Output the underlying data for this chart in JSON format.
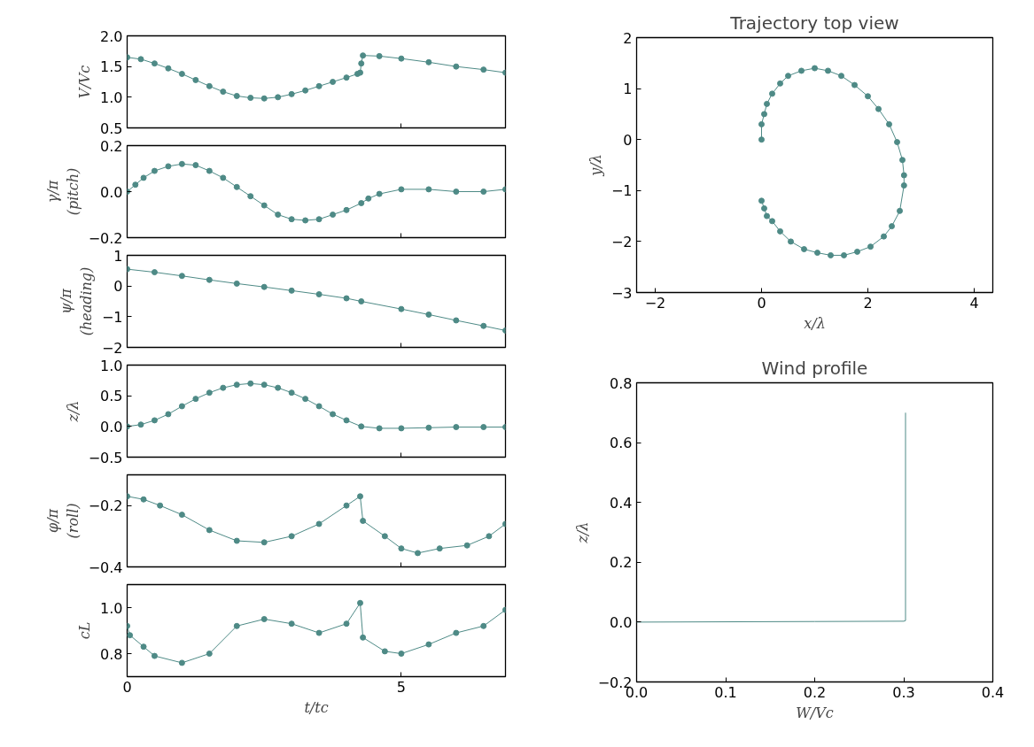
{
  "chart_data": [
    {
      "type": "line",
      "ylabel": "V/Vc",
      "marker": "circle",
      "tick_labels": "y",
      "xlim": [
        0,
        6.9
      ],
      "xticks": [
        0,
        5
      ],
      "ylim": [
        0.5,
        2.0
      ],
      "yticks": [
        {
          "value": 0.5,
          "label": "0.5"
        },
        {
          "value": 1.0,
          "label": "1.0"
        },
        {
          "value": 1.5,
          "label": "1.5"
        },
        {
          "value": 2.0,
          "label": "2.0"
        }
      ],
      "x": [
        0,
        0.25,
        0.5,
        0.75,
        1,
        1.25,
        1.5,
        1.75,
        2,
        2.25,
        2.5,
        2.75,
        3,
        3.25,
        3.5,
        3.75,
        4,
        4.2,
        4.25,
        4.27,
        4.3,
        4.6,
        5,
        5.5,
        6,
        6.5,
        6.9
      ],
      "series": [
        {
          "color": "#4e8a86",
          "values": [
            1.65,
            1.62,
            1.55,
            1.47,
            1.38,
            1.28,
            1.18,
            1.09,
            1.02,
            0.99,
            0.98,
            1.0,
            1.05,
            1.11,
            1.18,
            1.25,
            1.32,
            1.38,
            1.4,
            1.55,
            1.68,
            1.67,
            1.63,
            1.57,
            1.5,
            1.45,
            1.4
          ]
        }
      ]
    },
    {
      "type": "line",
      "ylabel": "γ/π\n(pitch)",
      "marker": "circle",
      "tick_labels": "y",
      "xlim": [
        0,
        6.9
      ],
      "xticks": [
        0,
        5
      ],
      "ylim": [
        -0.2,
        0.2
      ],
      "yticks": [
        {
          "value": -0.2,
          "label": "−0.2"
        },
        {
          "value": 0.0,
          "label": "0.0"
        },
        {
          "value": 0.2,
          "label": "0.2"
        }
      ],
      "x": [
        0,
        0.15,
        0.3,
        0.5,
        0.75,
        1,
        1.25,
        1.5,
        1.75,
        2,
        2.25,
        2.5,
        2.75,
        3,
        3.25,
        3.5,
        3.75,
        4,
        4.27,
        4.4,
        4.6,
        5,
        5.5,
        6,
        6.5,
        6.9
      ],
      "series": [
        {
          "color": "#4e8a86",
          "values": [
            0.0,
            0.03,
            0.06,
            0.09,
            0.11,
            0.12,
            0.115,
            0.09,
            0.06,
            0.02,
            -0.02,
            -0.06,
            -0.1,
            -0.12,
            -0.125,
            -0.12,
            -0.1,
            -0.08,
            -0.05,
            -0.03,
            -0.01,
            0.01,
            0.01,
            0.0,
            0.0,
            0.01
          ]
        }
      ]
    },
    {
      "type": "line",
      "ylabel": "ψ/π\n(heading)",
      "marker": "circle",
      "tick_labels": "y",
      "xlim": [
        0,
        6.9
      ],
      "xticks": [
        0,
        5
      ],
      "ylim": [
        -2,
        1
      ],
      "yticks": [
        {
          "value": -2,
          "label": "−2"
        },
        {
          "value": -1,
          "label": "−1"
        },
        0,
        1
      ],
      "x": [
        0,
        0.5,
        1,
        1.5,
        2,
        2.5,
        3,
        3.5,
        4,
        4.27,
        5,
        5.5,
        6,
        6.5,
        6.9
      ],
      "series": [
        {
          "color": "#4e8a86",
          "values": [
            0.55,
            0.45,
            0.33,
            0.2,
            0.08,
            -0.03,
            -0.15,
            -0.27,
            -0.4,
            -0.5,
            -0.75,
            -0.93,
            -1.12,
            -1.3,
            -1.45
          ]
        }
      ]
    },
    {
      "type": "line",
      "ylabel": "z/λ",
      "marker": "circle",
      "tick_labels": "y",
      "xlim": [
        0,
        6.9
      ],
      "xticks": [
        0,
        5
      ],
      "ylim": [
        -0.5,
        1.0
      ],
      "yticks": [
        {
          "value": -0.5,
          "label": "−0.5"
        },
        {
          "value": 0.0,
          "label": "0.0"
        },
        {
          "value": 0.5,
          "label": "0.5"
        },
        {
          "value": 1.0,
          "label": "1.0"
        }
      ],
      "x": [
        0,
        0.25,
        0.5,
        0.75,
        1,
        1.25,
        1.5,
        1.75,
        2,
        2.25,
        2.5,
        2.75,
        3,
        3.25,
        3.5,
        3.75,
        4,
        4.27,
        4.6,
        5,
        5.5,
        6,
        6.5,
        6.9
      ],
      "series": [
        {
          "color": "#4e8a86",
          "values": [
            0.0,
            0.03,
            0.1,
            0.2,
            0.33,
            0.45,
            0.55,
            0.63,
            0.68,
            0.7,
            0.68,
            0.63,
            0.55,
            0.45,
            0.33,
            0.2,
            0.1,
            0.0,
            -0.03,
            -0.03,
            -0.02,
            -0.01,
            -0.01,
            -0.01
          ]
        }
      ]
    },
    {
      "type": "line",
      "ylabel": "φ/π\n(roll)",
      "marker": "circle",
      "tick_labels": "y",
      "xlim": [
        0,
        6.9
      ],
      "xticks": [
        0,
        5
      ],
      "ylim": [
        -0.4,
        -0.1
      ],
      "yticks": [
        {
          "value": -0.4,
          "label": "−0.4"
        },
        {
          "value": -0.2,
          "label": "−0.2"
        }
      ],
      "x": [
        0,
        0.3,
        0.6,
        1,
        1.5,
        2,
        2.5,
        3,
        3.5,
        4,
        4.25,
        4.3,
        4.7,
        5,
        5.3,
        5.7,
        6.2,
        6.6,
        6.9
      ],
      "series": [
        {
          "color": "#4e8a86",
          "values": [
            -0.17,
            -0.18,
            -0.2,
            -0.23,
            -0.28,
            -0.315,
            -0.32,
            -0.3,
            -0.26,
            -0.2,
            -0.17,
            -0.25,
            -0.3,
            -0.34,
            -0.355,
            -0.34,
            -0.33,
            -0.3,
            -0.26
          ]
        }
      ]
    },
    {
      "type": "line",
      "ylabel": "cL",
      "xlabel": "t/tc",
      "marker": "circle",
      "xlim": [
        0,
        6.9
      ],
      "xticks": [
        0,
        5
      ],
      "ylim": [
        0.7,
        1.1
      ],
      "yticks": [
        {
          "value": 0.8,
          "label": "0.8"
        },
        {
          "value": 1.0,
          "label": "1.0"
        }
      ],
      "x": [
        0,
        0.05,
        0.3,
        0.5,
        1,
        1.5,
        2,
        2.5,
        3,
        3.5,
        4,
        4.25,
        4.3,
        4.7,
        5,
        5.5,
        6,
        6.5,
        6.9
      ],
      "series": [
        {
          "color": "#4e8a86",
          "values": [
            0.92,
            0.88,
            0.83,
            0.79,
            0.76,
            0.8,
            0.92,
            0.95,
            0.93,
            0.89,
            0.93,
            1.02,
            0.87,
            0.81,
            0.8,
            0.84,
            0.89,
            0.92,
            0.99
          ]
        }
      ]
    },
    {
      "type": "line",
      "title": "Trajectory top view",
      "xlabel": "x/λ",
      "ylabel": "y/λ",
      "marker": "circle",
      "xlim": [
        -2.35,
        4.35
      ],
      "xticks": [
        {
          "value": -2,
          "label": "−2"
        },
        0,
        2,
        4
      ],
      "ylim": [
        -3,
        2
      ],
      "yticks": [
        {
          "value": -3,
          "label": "−3"
        },
        {
          "value": -2,
          "label": "−2"
        },
        {
          "value": -1,
          "label": "−1"
        },
        0,
        1,
        2
      ],
      "x": [
        0,
        0,
        0.05,
        0.1,
        0.2,
        0.35,
        0.5,
        0.75,
        1.0,
        1.25,
        1.5,
        1.75,
        2.0,
        2.2,
        2.4,
        2.55,
        2.65,
        2.68,
        2.68,
        2.6,
        2.45,
        2.3,
        2.05,
        1.8,
        1.55,
        1.3,
        1.05,
        0.8,
        0.55,
        0.35,
        0.2,
        0.1,
        0.05,
        0
      ],
      "series": [
        {
          "color": "#4e8a86",
          "values": [
            0,
            0.3,
            0.5,
            0.7,
            0.9,
            1.1,
            1.25,
            1.35,
            1.4,
            1.35,
            1.25,
            1.07,
            0.85,
            0.6,
            0.3,
            -0.05,
            -0.4,
            -0.7,
            -0.9,
            -1.4,
            -1.7,
            -1.9,
            -2.1,
            -2.2,
            -2.27,
            -2.27,
            -2.22,
            -2.15,
            -2.0,
            -1.8,
            -1.6,
            -1.5,
            -1.35,
            -1.2
          ]
        }
      ]
    },
    {
      "type": "line",
      "title": "Wind profile",
      "xlabel": "W/Vc",
      "ylabel": "z/λ",
      "xlim": [
        0,
        0.4
      ],
      "xticks": [
        {
          "value": 0,
          "label": "0.0"
        },
        {
          "value": 0.1,
          "label": "0.1"
        },
        {
          "value": 0.2,
          "label": "0.2"
        },
        {
          "value": 0.3,
          "label": "0.3"
        },
        {
          "value": 0.4,
          "label": "0.4"
        }
      ],
      "ylim": [
        -0.2,
        0.8
      ],
      "yticks": [
        {
          "value": -0.2,
          "label": "−0.2"
        },
        {
          "value": 0,
          "label": "0.0"
        },
        {
          "value": 0.2,
          "label": "0.2"
        },
        {
          "value": 0.4,
          "label": "0.4"
        },
        {
          "value": 0.6,
          "label": "0.6"
        },
        {
          "value": 0.8,
          "label": "0.8"
        }
      ],
      "x": [
        0,
        0.1,
        0.2,
        0.3,
        0.302,
        0.302
      ],
      "series": [
        {
          "color": "#4e8a86",
          "values": [
            0,
            0.001,
            0.002,
            0.003,
            0.005,
            0.7
          ]
        }
      ]
    }
  ]
}
